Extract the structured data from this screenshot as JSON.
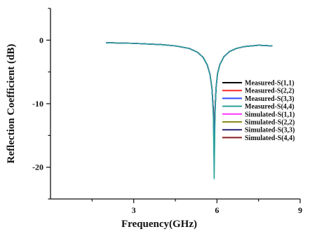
{
  "chart_data": {
    "type": "line",
    "title": "",
    "xlabel": "Frequency(GHz)",
    "ylabel": "Reflection Coefficient (dB)",
    "xlim": [
      0,
      9
    ],
    "ylim": [
      -25,
      5
    ],
    "x_ticks": [
      3,
      6,
      9
    ],
    "x_tick_labels": [
      "3",
      "6",
      "9"
    ],
    "y_ticks": [
      0,
      -10,
      -20
    ],
    "y_tick_labels": [
      "0",
      "-10",
      "-20"
    ],
    "grid": false,
    "legend_position": "right",
    "x": [
      2.0,
      3.0,
      4.0,
      4.5,
      5.0,
      5.3,
      5.5,
      5.65,
      5.75,
      5.82,
      5.87,
      5.9,
      5.93,
      5.97,
      6.02,
      6.1,
      6.25,
      6.45,
      6.7,
      7.0,
      7.5,
      8.0
    ],
    "series": [
      {
        "name": "Measured-S(1,1)",
        "color": "#000000",
        "values": [
          -0.4,
          -0.5,
          -0.7,
          -0.9,
          -1.3,
          -1.9,
          -2.7,
          -3.9,
          -5.4,
          -7.6,
          -11.0,
          -17.0,
          -11.0,
          -7.4,
          -5.3,
          -3.9,
          -2.6,
          -1.8,
          -1.3,
          -1.0,
          -0.8,
          -0.9
        ]
      },
      {
        "name": "Measured-S(2,2)",
        "color": "#ff2a2a",
        "values": [
          -0.4,
          -0.5,
          -0.7,
          -0.9,
          -1.3,
          -1.9,
          -2.7,
          -3.9,
          -5.4,
          -7.6,
          -11.0,
          -17.0,
          -11.0,
          -7.4,
          -5.3,
          -3.9,
          -2.6,
          -1.8,
          -1.3,
          -1.0,
          -0.8,
          -0.9
        ]
      },
      {
        "name": "Measured-S(3,3)",
        "color": "#2e4bff",
        "values": [
          -0.4,
          -0.5,
          -0.7,
          -0.9,
          -1.3,
          -1.9,
          -2.7,
          -3.9,
          -5.4,
          -7.6,
          -11.5,
          -19.0,
          -11.5,
          -7.4,
          -5.3,
          -3.9,
          -2.6,
          -1.8,
          -1.3,
          -1.0,
          -0.8,
          -0.9
        ]
      },
      {
        "name": "Measured-S(4,4)",
        "color": "#2aa39a",
        "values": [
          -0.4,
          -0.5,
          -0.7,
          -0.9,
          -1.3,
          -1.9,
          -2.7,
          -3.9,
          -5.4,
          -7.6,
          -12.0,
          -21.8,
          -12.0,
          -7.4,
          -5.3,
          -3.9,
          -2.6,
          -1.8,
          -1.3,
          -1.0,
          -0.8,
          -0.9
        ]
      },
      {
        "name": "Simulated-S(1,1)",
        "color": "#ff33ff",
        "values": [
          -0.4,
          -0.5,
          -0.7,
          -0.9,
          -1.3,
          -1.9,
          -2.7,
          -3.9,
          -5.4,
          -7.6,
          -11.0,
          -17.0,
          -11.0,
          -7.4,
          -5.3,
          -3.9,
          -2.6,
          -1.8,
          -1.3,
          -1.0,
          -0.8,
          -0.9
        ]
      },
      {
        "name": "Simulated-S(2,2)",
        "color": "#8a8a1a",
        "values": [
          -0.4,
          -0.5,
          -0.7,
          -0.9,
          -1.3,
          -1.9,
          -2.7,
          -3.9,
          -5.4,
          -7.6,
          -11.0,
          -17.0,
          -11.0,
          -7.4,
          -5.3,
          -3.9,
          -2.6,
          -1.8,
          -1.3,
          -1.0,
          -0.8,
          -0.9
        ]
      },
      {
        "name": "Simulated-S(3,3)",
        "color": "#23237a",
        "values": [
          -0.4,
          -0.5,
          -0.7,
          -0.9,
          -1.3,
          -1.9,
          -2.7,
          -3.9,
          -5.4,
          -7.6,
          -11.0,
          -17.0,
          -11.0,
          -7.4,
          -5.3,
          -3.9,
          -2.6,
          -1.8,
          -1.3,
          -1.0,
          -0.8,
          -0.9
        ]
      },
      {
        "name": "Simulated-S(4,4)",
        "color": "#8b1f1f",
        "values": [
          -0.4,
          -0.5,
          -0.7,
          -0.9,
          -1.3,
          -1.9,
          -2.7,
          -3.9,
          -5.4,
          -7.6,
          -11.0,
          -17.0,
          -11.0,
          -7.4,
          -5.3,
          -3.9,
          -2.6,
          -1.8,
          -1.3,
          -1.0,
          -0.8,
          -0.9
        ]
      }
    ]
  }
}
